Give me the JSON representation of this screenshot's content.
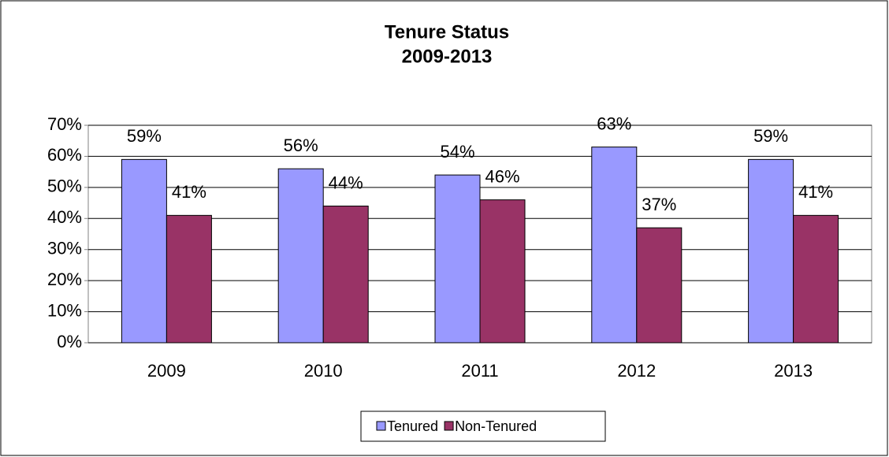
{
  "chart_data": {
    "type": "bar",
    "title": "Tenure Status",
    "subtitle": "2009-2013",
    "categories": [
      "2009",
      "2010",
      "2011",
      "2012",
      "2013"
    ],
    "series": [
      {
        "name": "Tenured",
        "color": "#9999ff",
        "values": [
          59,
          56,
          54,
          63,
          59
        ],
        "value_labels": [
          "59%",
          "56%",
          "54%",
          "63%",
          "59%"
        ]
      },
      {
        "name": "Non-Tenured",
        "color": "#993366",
        "values": [
          41,
          44,
          46,
          37,
          41
        ],
        "value_labels": [
          "41%",
          "44%",
          "46%",
          "37%",
          "41%"
        ]
      }
    ],
    "ylim": [
      0,
      70
    ],
    "yticks": [
      {
        "value": 0,
        "label": "0%"
      },
      {
        "value": 10,
        "label": "10%"
      },
      {
        "value": 20,
        "label": "20%"
      },
      {
        "value": 30,
        "label": "30%"
      },
      {
        "value": 40,
        "label": "40%"
      },
      {
        "value": 50,
        "label": "50%"
      },
      {
        "value": 60,
        "label": "60%"
      },
      {
        "value": 70,
        "label": "70%"
      }
    ],
    "grid": true,
    "legend": "bottom"
  }
}
